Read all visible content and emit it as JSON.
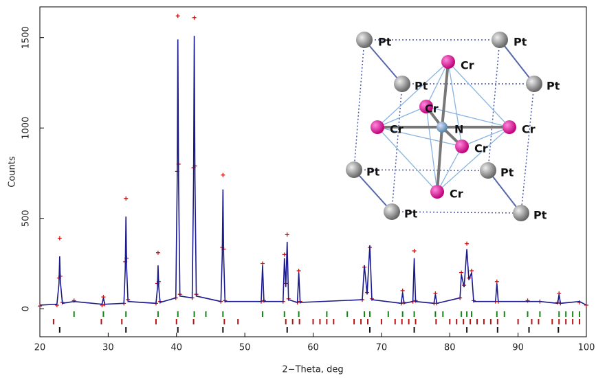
{
  "chart_data": {
    "type": "line",
    "xlabel": "2−Theta, deg",
    "ylabel": "Counts",
    "xlim": [
      20,
      100
    ],
    "ylim": [
      -155,
      1670
    ],
    "xticks": [
      20,
      30,
      40,
      50,
      60,
      70,
      80,
      90,
      100
    ],
    "yticks": [
      0,
      500,
      1000,
      1500
    ],
    "x": [
      20,
      22.5,
      22.8,
      22.9,
      23.0,
      23.3,
      25,
      29.1,
      29.3,
      29.5,
      32.3,
      32.5,
      32.6,
      32.7,
      32.9,
      37.0,
      37.2,
      37.3,
      37.4,
      37.6,
      39.9,
      40.1,
      40.2,
      40.3,
      40.5,
      42.3,
      42.5,
      42.6,
      42.7,
      42.9,
      46.5,
      46.7,
      46.8,
      46.9,
      47.1,
      52.4,
      52.6,
      52.8,
      55.6,
      55.8,
      56.0,
      56.2,
      56.4,
      57.7,
      57.9,
      58.1,
      67.2,
      67.5,
      67.9,
      68.3,
      68.6,
      72.9,
      73.1,
      73.3,
      74.6,
      74.8,
      75.0,
      77.7,
      77.9,
      78.1,
      81.5,
      81.7,
      82.1,
      82.5,
      82.8,
      83.2,
      83.5,
      86.7,
      86.9,
      87.1,
      91.4,
      93.2,
      95.8,
      96.0,
      96.2,
      99,
      100
    ],
    "series": [
      {
        "color": "#cc1111",
        "marker": "plus",
        "values": [
          15,
          20,
          170,
          390,
          180,
          35,
          45,
          20,
          65,
          25,
          30,
          260,
          610,
          280,
          50,
          30,
          140,
          310,
          150,
          40,
          60,
          760,
          1620,
          800,
          80,
          60,
          780,
          1610,
          790,
          80,
          40,
          340,
          740,
          330,
          45,
          40,
          250,
          45,
          40,
          300,
          140,
          410,
          55,
          35,
          210,
          40,
          50,
          230,
          90,
          340,
          55,
          30,
          100,
          35,
          40,
          320,
          45,
          30,
          85,
          30,
          60,
          200,
          130,
          360,
          170,
          210,
          45,
          40,
          150,
          40,
          45,
          40,
          35,
          85,
          30,
          35,
          20
        ]
      },
      {
        "color": "#1a1a8c",
        "marker": "line",
        "values": [
          20,
          25,
          140,
          290,
          150,
          30,
          40,
          25,
          60,
          25,
          30,
          220,
          510,
          230,
          40,
          30,
          110,
          240,
          120,
          35,
          60,
          700,
          1490,
          720,
          70,
          60,
          720,
          1510,
          730,
          70,
          40,
          300,
          660,
          300,
          40,
          40,
          240,
          40,
          40,
          280,
          120,
          370,
          50,
          35,
          200,
          35,
          50,
          240,
          80,
          350,
          50,
          30,
          90,
          30,
          40,
          280,
          40,
          30,
          80,
          30,
          60,
          190,
          120,
          330,
          160,
          200,
          40,
          40,
          140,
          40,
          40,
          40,
          30,
          80,
          30,
          40,
          20
        ]
      }
    ],
    "reflections": [
      {
        "color": "#118811",
        "positions": [
          25,
          29.3,
          32.6,
          37.3,
          40.2,
          42.6,
          44.3,
          46.8,
          52.6,
          55.8,
          57.9,
          62,
          65,
          67.5,
          68.3,
          71,
          73.1,
          74.8,
          77.9,
          79,
          81.7,
          82.5,
          83.2,
          86.9,
          88,
          91.4,
          93.2,
          96,
          97,
          98,
          99
        ]
      },
      {
        "color": "#bb1111",
        "positions": [
          22,
          29,
          32,
          37,
          40,
          42.5,
          47,
          49,
          56,
          57,
          58,
          60,
          61,
          62,
          63,
          66,
          67,
          68,
          70,
          72,
          73,
          74,
          75,
          78,
          80,
          81,
          82,
          83,
          84,
          85,
          86,
          87,
          90,
          92,
          93,
          95,
          96,
          97,
          98,
          99
        ]
      },
      {
        "color": "#111111",
        "positions": [
          22.9,
          32.6,
          40.2,
          46.8,
          56.2,
          68.3,
          74.8,
          82.5,
          87,
          91.6,
          95.9
        ]
      }
    ]
  },
  "inset": {
    "atoms": [
      "Pt",
      "Pt",
      "Pt",
      "Pt",
      "Pt",
      "Pt",
      "Pt",
      "Pt",
      "Cr",
      "Cr",
      "Cr",
      "Cr",
      "Cr",
      "Cr",
      "N"
    ]
  }
}
